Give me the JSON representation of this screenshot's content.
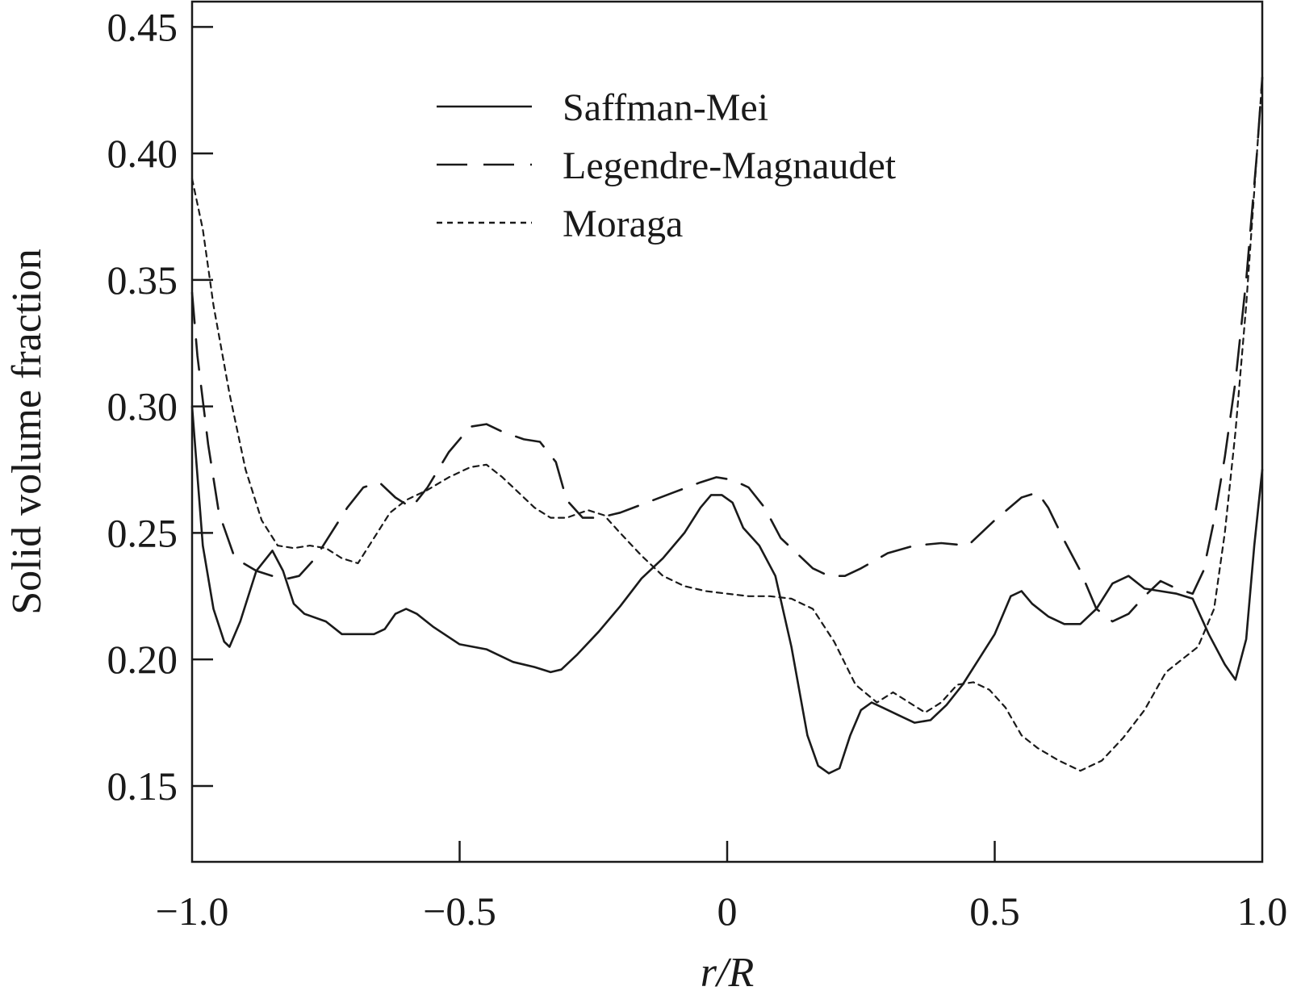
{
  "chart_data": {
    "type": "line",
    "title": "",
    "xlabel": "r/R",
    "ylabel": "Solid volume fraction",
    "xlim": [
      -1.0,
      1.0
    ],
    "ylim": [
      0.12,
      0.46
    ],
    "xticks": [
      -1.0,
      -0.5,
      0,
      0.5,
      1.0
    ],
    "xtick_labels": [
      "−1.0",
      "−0.5",
      "0",
      "0.5",
      "1.0"
    ],
    "yticks": [
      0.15,
      0.2,
      0.25,
      0.3,
      0.35,
      0.4,
      0.45
    ],
    "ytick_labels": [
      "0.15",
      "0.20",
      "0.25",
      "0.30",
      "0.35",
      "0.40",
      "0.45"
    ],
    "grid": false,
    "legend_position": "top-center",
    "series": [
      {
        "name": "Saffman-Mei",
        "style": "solid",
        "x": [
          -1.0,
          -0.98,
          -0.96,
          -0.94,
          -0.93,
          -0.91,
          -0.88,
          -0.85,
          -0.83,
          -0.81,
          -0.79,
          -0.75,
          -0.72,
          -0.69,
          -0.66,
          -0.64,
          -0.62,
          -0.6,
          -0.58,
          -0.55,
          -0.5,
          -0.45,
          -0.4,
          -0.36,
          -0.33,
          -0.31,
          -0.28,
          -0.24,
          -0.2,
          -0.16,
          -0.12,
          -0.08,
          -0.05,
          -0.03,
          -0.01,
          0.01,
          0.03,
          0.06,
          0.09,
          0.12,
          0.15,
          0.17,
          0.19,
          0.21,
          0.23,
          0.25,
          0.27,
          0.29,
          0.32,
          0.35,
          0.38,
          0.41,
          0.44,
          0.47,
          0.5,
          0.53,
          0.55,
          0.57,
          0.6,
          0.63,
          0.66,
          0.69,
          0.72,
          0.75,
          0.78,
          0.81,
          0.84,
          0.87,
          0.9,
          0.93,
          0.95,
          0.97,
          0.985,
          1.0
        ],
        "values": [
          0.3,
          0.245,
          0.22,
          0.207,
          0.205,
          0.215,
          0.235,
          0.243,
          0.235,
          0.222,
          0.218,
          0.215,
          0.21,
          0.21,
          0.21,
          0.212,
          0.218,
          0.22,
          0.218,
          0.213,
          0.206,
          0.204,
          0.199,
          0.197,
          0.195,
          0.196,
          0.202,
          0.211,
          0.221,
          0.232,
          0.24,
          0.25,
          0.26,
          0.265,
          0.265,
          0.262,
          0.252,
          0.245,
          0.233,
          0.205,
          0.17,
          0.158,
          0.155,
          0.157,
          0.17,
          0.18,
          0.183,
          0.181,
          0.178,
          0.175,
          0.176,
          0.182,
          0.19,
          0.2,
          0.21,
          0.225,
          0.227,
          0.222,
          0.217,
          0.214,
          0.214,
          0.22,
          0.23,
          0.233,
          0.228,
          0.227,
          0.226,
          0.224,
          0.21,
          0.198,
          0.192,
          0.208,
          0.245,
          0.275
        ]
      },
      {
        "name": "Legendre-Magnaudet",
        "style": "dashed",
        "x": [
          -1.0,
          -0.99,
          -0.97,
          -0.95,
          -0.92,
          -0.88,
          -0.85,
          -0.82,
          -0.8,
          -0.77,
          -0.74,
          -0.71,
          -0.68,
          -0.65,
          -0.62,
          -0.59,
          -0.56,
          -0.52,
          -0.48,
          -0.45,
          -0.42,
          -0.38,
          -0.35,
          -0.32,
          -0.3,
          -0.27,
          -0.24,
          -0.2,
          -0.15,
          -0.1,
          -0.05,
          -0.02,
          0.01,
          0.04,
          0.07,
          0.1,
          0.13,
          0.16,
          0.19,
          0.22,
          0.25,
          0.3,
          0.35,
          0.4,
          0.45,
          0.5,
          0.55,
          0.58,
          0.6,
          0.63,
          0.66,
          0.69,
          0.72,
          0.75,
          0.78,
          0.81,
          0.84,
          0.87,
          0.89,
          0.91,
          0.93,
          0.95,
          0.97,
          0.99,
          1.0
        ],
        "values": [
          0.345,
          0.32,
          0.285,
          0.258,
          0.24,
          0.235,
          0.233,
          0.232,
          0.233,
          0.24,
          0.25,
          0.26,
          0.268,
          0.27,
          0.264,
          0.26,
          0.268,
          0.282,
          0.292,
          0.293,
          0.29,
          0.287,
          0.286,
          0.278,
          0.263,
          0.256,
          0.256,
          0.258,
          0.262,
          0.266,
          0.27,
          0.272,
          0.271,
          0.268,
          0.26,
          0.248,
          0.242,
          0.236,
          0.233,
          0.233,
          0.236,
          0.242,
          0.245,
          0.246,
          0.245,
          0.255,
          0.264,
          0.266,
          0.26,
          0.247,
          0.235,
          0.22,
          0.215,
          0.218,
          0.225,
          0.231,
          0.228,
          0.226,
          0.235,
          0.255,
          0.28,
          0.31,
          0.35,
          0.4,
          0.43
        ]
      },
      {
        "name": "Moraga",
        "style": "dotted",
        "x": [
          -1.0,
          -0.98,
          -0.96,
          -0.93,
          -0.9,
          -0.87,
          -0.84,
          -0.81,
          -0.78,
          -0.75,
          -0.72,
          -0.69,
          -0.66,
          -0.63,
          -0.6,
          -0.56,
          -0.52,
          -0.48,
          -0.45,
          -0.42,
          -0.39,
          -0.36,
          -0.33,
          -0.3,
          -0.26,
          -0.23,
          -0.2,
          -0.16,
          -0.12,
          -0.08,
          -0.04,
          0.0,
          0.04,
          0.08,
          0.12,
          0.16,
          0.2,
          0.24,
          0.28,
          0.31,
          0.34,
          0.37,
          0.4,
          0.43,
          0.46,
          0.49,
          0.52,
          0.55,
          0.58,
          0.62,
          0.66,
          0.7,
          0.74,
          0.78,
          0.82,
          0.85,
          0.88,
          0.91,
          0.93,
          0.95,
          0.97,
          0.99,
          1.0
        ],
        "values": [
          0.39,
          0.37,
          0.34,
          0.305,
          0.275,
          0.255,
          0.245,
          0.244,
          0.245,
          0.244,
          0.24,
          0.238,
          0.248,
          0.258,
          0.263,
          0.267,
          0.272,
          0.276,
          0.277,
          0.272,
          0.266,
          0.26,
          0.256,
          0.256,
          0.259,
          0.257,
          0.25,
          0.241,
          0.233,
          0.229,
          0.227,
          0.226,
          0.225,
          0.225,
          0.224,
          0.22,
          0.207,
          0.19,
          0.183,
          0.187,
          0.183,
          0.179,
          0.183,
          0.19,
          0.191,
          0.188,
          0.181,
          0.17,
          0.165,
          0.16,
          0.156,
          0.16,
          0.169,
          0.18,
          0.195,
          0.2,
          0.205,
          0.22,
          0.25,
          0.29,
          0.34,
          0.4,
          0.43
        ]
      }
    ]
  }
}
